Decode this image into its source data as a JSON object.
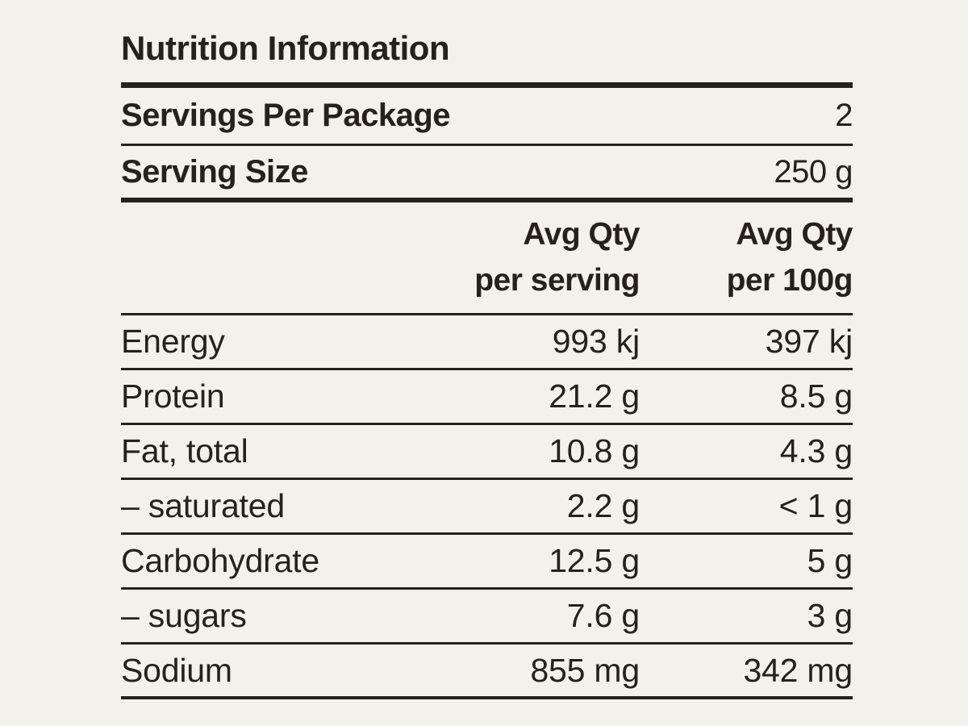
{
  "page": {
    "background_color": "#f2f1ea",
    "text_color": "#24221b"
  },
  "label": {
    "title": "Nutrition Information",
    "package_info": [
      {
        "label": "Servings Per Package",
        "value": "2"
      },
      {
        "label": "Serving Size",
        "value": "250 g"
      }
    ],
    "column_headers": {
      "per_serving": {
        "line1": "Avg Qty",
        "line2": "per serving"
      },
      "per_100g": {
        "line1": "Avg Qty",
        "line2": "per 100g"
      }
    },
    "nutrients": [
      {
        "name": "Energy",
        "per_serving": "993 kj",
        "per_100g": "397 kj"
      },
      {
        "name": "Protein",
        "per_serving": "21.2 g",
        "per_100g": "8.5 g"
      },
      {
        "name": "Fat, total",
        "per_serving": "10.8 g",
        "per_100g": "4.3 g"
      },
      {
        "name": "– saturated",
        "per_serving": "2.2 g",
        "per_100g": "< 1 g"
      },
      {
        "name": "Carbohydrate",
        "per_serving": "12.5 g",
        "per_100g": "5 g"
      },
      {
        "name": "– sugars",
        "per_serving": "7.6 g",
        "per_100g": "3 g"
      },
      {
        "name": "Sodium",
        "per_serving": "855 mg",
        "per_100g": "342 mg"
      }
    ]
  }
}
